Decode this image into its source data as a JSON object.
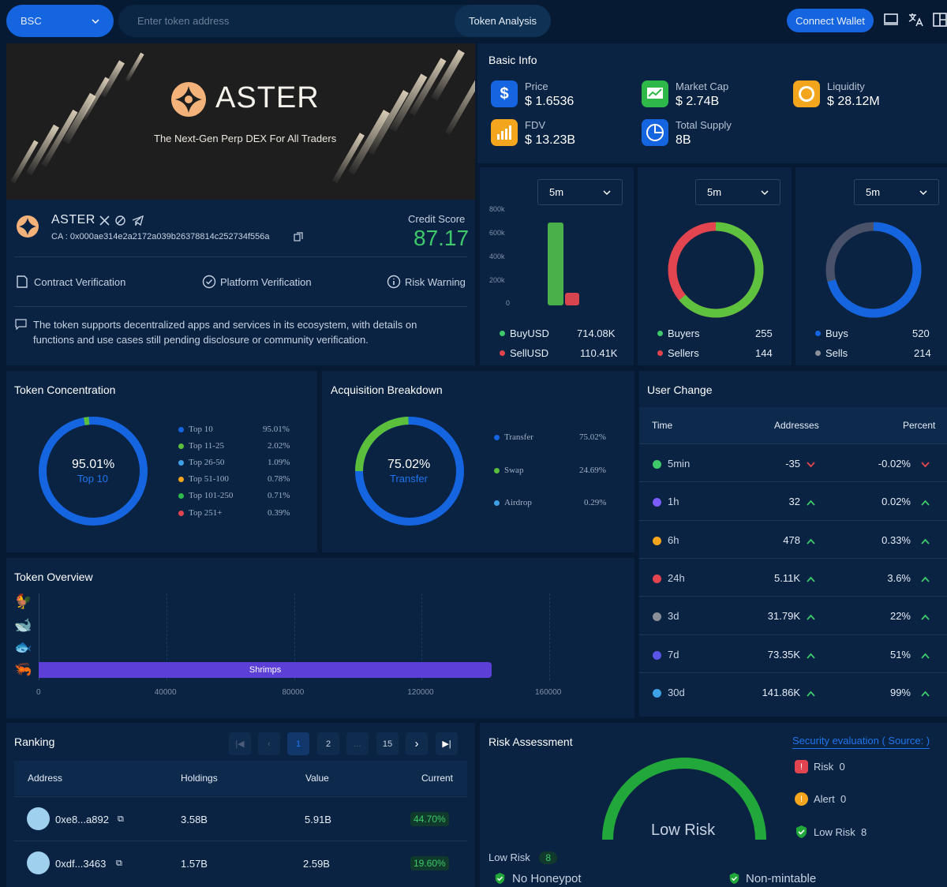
{
  "topbar": {
    "chain": "BSC",
    "search_placeholder": "Enter token address",
    "token_analysis": "Token Analysis",
    "connect_wallet": "Connect Wallet"
  },
  "banner": {
    "brand": "ASTER",
    "tagline": "The Next-Gen Perp DEX For All Traders"
  },
  "token": {
    "name": "ASTER",
    "ca_label": "CA :",
    "ca": "0x000ae314e2a2172a039b26378814c252734f556a",
    "credit_label": "Credit Score",
    "credit_score": "87.17",
    "verifications": [
      "Contract Verification",
      "Platform Verification",
      "Risk Warning"
    ],
    "description": "The token supports decentralized apps and services in its ecosystem, with details on functions and use cases still pending disclosure or community verification."
  },
  "basic_info": {
    "title": "Basic Info",
    "items": [
      {
        "label": "Price",
        "value": "$ 1.6536",
        "icon": "dollar-icon",
        "color": "#1565e0"
      },
      {
        "label": "Market Cap",
        "value": "$ 2.74B",
        "icon": "chart-icon",
        "color": "#2fb84a"
      },
      {
        "label": "Liquidity",
        "value": "$ 28.12M",
        "icon": "coin-icon",
        "color": "#f2a51d"
      },
      {
        "label": "FDV",
        "value": "$ 13.23B",
        "icon": "bar-chart-icon",
        "color": "#f2a51d"
      },
      {
        "label": "Total Supply",
        "value": "8B",
        "icon": "pie-icon",
        "color": "#1565e0"
      }
    ]
  },
  "volume": {
    "interval": "5m",
    "ticks": [
      "800k",
      "600k",
      "400k",
      "200k",
      "0"
    ],
    "buy_label": "BuyUSD",
    "buy_value": "714.08K",
    "sell_label": "SellUSD",
    "sell_value": "110.41K"
  },
  "traders": {
    "interval": "5m",
    "buyers_label": "Buyers",
    "buyers": "255",
    "sellers_label": "Sellers",
    "sellers": "144"
  },
  "txns": {
    "interval": "5m",
    "buys_label": "Buys",
    "buys": "520",
    "sells_label": "Sells",
    "sells": "214"
  },
  "concentration": {
    "title": "Token Concentration",
    "center_value": "95.01%",
    "center_label": "Top 10",
    "rows": [
      {
        "label": "Top 10",
        "value": "95.01%",
        "color": "#1565e0"
      },
      {
        "label": "Top 11-25",
        "value": "2.02%",
        "color": "#5bbf3c"
      },
      {
        "label": "Top 26-50",
        "value": "1.09%",
        "color": "#3ea0e6"
      },
      {
        "label": "Top 51-100",
        "value": "0.78%",
        "color": "#f2a51d"
      },
      {
        "label": "Top 101-250",
        "value": "0.71%",
        "color": "#2fb84a"
      },
      {
        "label": "Top 251+",
        "value": "0.39%",
        "color": "#e2454f"
      }
    ]
  },
  "acquisition": {
    "title": "Acquisition Breakdown",
    "center_value": "75.02%",
    "center_label": "Transfer",
    "rows": [
      {
        "label": "Transfer",
        "value": "75.02%",
        "color": "#1565e0"
      },
      {
        "label": "Swap",
        "value": "24.69%",
        "color": "#5bbf3c"
      },
      {
        "label": "Airdrop",
        "value": "0.29%",
        "color": "#3ea0e6"
      }
    ]
  },
  "user_change": {
    "title": "User Change",
    "headers": [
      "Time",
      "Addresses",
      "Percent"
    ],
    "rows": [
      {
        "time": "5min",
        "addresses": "-35",
        "percent": "-0.02%",
        "dir": "down",
        "color": "#3ec96a"
      },
      {
        "time": "1h",
        "addresses": "32",
        "percent": "0.02%",
        "dir": "up",
        "color": "#7a5cff"
      },
      {
        "time": "6h",
        "addresses": "478",
        "percent": "0.33%",
        "dir": "up",
        "color": "#f2a51d"
      },
      {
        "time": "24h",
        "addresses": "5.11K",
        "percent": "3.6%",
        "dir": "up",
        "color": "#e2454f"
      },
      {
        "time": "3d",
        "addresses": "31.79K",
        "percent": "22%",
        "dir": "up",
        "color": "#8a8f98"
      },
      {
        "time": "7d",
        "addresses": "73.35K",
        "percent": "51%",
        "dir": "up",
        "color": "#5a55e6"
      },
      {
        "time": "30d",
        "addresses": "141.86K",
        "percent": "99%",
        "dir": "up",
        "color": "#3ea0e6"
      }
    ]
  },
  "overview": {
    "title": "Token Overview",
    "bar_label": "Shrimps",
    "x_ticks": [
      "0",
      "40000",
      "80000",
      "120000",
      "160000"
    ],
    "x_max": 160000,
    "shrimp_value": 142000
  },
  "ranking": {
    "title": "Ranking",
    "pages": [
      "1",
      "2",
      "...",
      "15"
    ],
    "headers": [
      "Address",
      "Holdings",
      "Value",
      "Current"
    ],
    "rows": [
      {
        "address": "0xe8...a892",
        "holdings": "3.58B",
        "value": "5.91B",
        "current": "44.70%"
      },
      {
        "address": "0xdf...3463",
        "holdings": "1.57B",
        "value": "2.59B",
        "current": "19.60%"
      }
    ]
  },
  "risk": {
    "title": "Risk Assessment",
    "source_link": "Security evaluation ( Source:  )",
    "gauge_label": "Low Risk",
    "risk_label": "Risk",
    "risk_count": "0",
    "alert_label": "Alert",
    "alert_count": "0",
    "low_label": "Low Risk",
    "low_count": "8",
    "footer_label": "Low Risk",
    "footer_count": "8",
    "checks": [
      "No Honeypot",
      "Non-mintable"
    ]
  }
}
